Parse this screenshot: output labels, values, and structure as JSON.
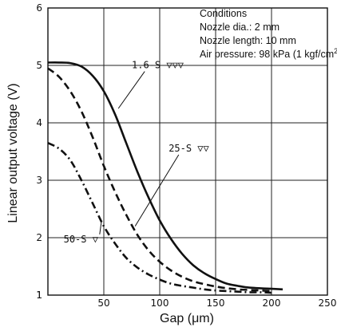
{
  "chart_data": {
    "type": "line",
    "title": "",
    "xlabel": "Gap (μm)",
    "ylabel": "Linear output voltage (V)",
    "xlim": [
      0,
      250
    ],
    "ylim": [
      1,
      6
    ],
    "xticks": [
      50,
      100,
      150,
      200,
      250
    ],
    "xtick_labels": [
      "50",
      "100",
      "150",
      "200",
      "250"
    ],
    "yticks": [
      1,
      2,
      3,
      4,
      5,
      6
    ],
    "ytick_labels": [
      "1",
      "2",
      "3",
      "4",
      "5",
      "6"
    ],
    "origin_label": "1",
    "grid": true,
    "conditions": {
      "heading": "Conditions",
      "nozzle_dia": "Nozzle dia.: 2 mm",
      "nozzle_length": "Nozzle length: 10 mm",
      "air_pressure_main": "Air pressure: 98 kPa (1 kgf/cm",
      "air_pressure_sup": "2",
      "air_pressure_end": ")"
    },
    "series": [
      {
        "name": "1.6-S ▽▽▽",
        "style": "solid",
        "x": [
          0,
          10,
          20,
          30,
          40,
          50,
          60,
          70,
          80,
          90,
          100,
          110,
          120,
          130,
          140,
          150,
          160,
          170,
          180,
          190,
          200,
          210
        ],
        "y": [
          5.05,
          5.05,
          5.04,
          4.98,
          4.82,
          4.55,
          4.15,
          3.65,
          3.15,
          2.7,
          2.3,
          1.98,
          1.72,
          1.52,
          1.38,
          1.28,
          1.2,
          1.16,
          1.13,
          1.12,
          1.11,
          1.1
        ]
      },
      {
        "name": "25-S ▽▽",
        "style": "dashed",
        "x": [
          0,
          10,
          20,
          30,
          40,
          50,
          60,
          70,
          80,
          90,
          100,
          110,
          120,
          130,
          140,
          150,
          160,
          170,
          180,
          190,
          200
        ],
        "y": [
          4.95,
          4.8,
          4.55,
          4.2,
          3.75,
          3.25,
          2.8,
          2.4,
          2.05,
          1.78,
          1.58,
          1.43,
          1.32,
          1.24,
          1.19,
          1.15,
          1.12,
          1.1,
          1.09,
          1.08,
          1.07
        ]
      },
      {
        "name": "50-S ▽",
        "style": "dashdot",
        "x": [
          0,
          10,
          20,
          30,
          40,
          50,
          60,
          70,
          80,
          90,
          100,
          110,
          120,
          130,
          140,
          150,
          160,
          170,
          180,
          190,
          200
        ],
        "y": [
          3.65,
          3.55,
          3.35,
          3.0,
          2.6,
          2.2,
          1.9,
          1.65,
          1.48,
          1.36,
          1.27,
          1.2,
          1.16,
          1.13,
          1.1,
          1.08,
          1.07,
          1.06,
          1.05,
          1.05,
          1.04
        ]
      }
    ],
    "annotations": [
      {
        "text": "1.6-S ▽▽▽",
        "series": 0,
        "label_x": 75,
        "label_y": 4.95,
        "target_x": 63,
        "target_y": 4.25
      },
      {
        "text": "25-S ▽▽",
        "series": 1,
        "label_x": 108,
        "label_y": 3.5,
        "target_x": 78,
        "target_y": 2.2
      },
      {
        "text": "50-S ▽",
        "series": 2,
        "label_x": 14,
        "label_y": 1.92,
        "target_x": 48,
        "target_y": 2.3
      }
    ]
  }
}
